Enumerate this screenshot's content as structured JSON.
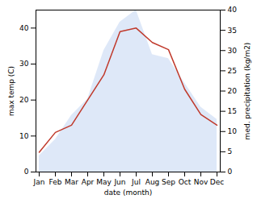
{
  "chart_data": {
    "type": "line",
    "categories": [
      "Jan",
      "Feb",
      "Mar",
      "Apr",
      "May",
      "Jun",
      "Jul",
      "Aug",
      "Sep",
      "Oct",
      "Nov",
      "Dec"
    ],
    "series": [
      {
        "type": "area",
        "axis": "y2",
        "color": "#c8d8f4",
        "values": [
          4,
          8,
          14,
          18,
          30,
          37,
          40,
          29,
          28,
          22,
          16,
          13
        ]
      },
      {
        "type": "line",
        "color": "#c0392b",
        "values": [
          5.5,
          11,
          13,
          20,
          27,
          39,
          40,
          36,
          34,
          23,
          16,
          13
        ]
      }
    ],
    "xlabel": "date (month)",
    "ylabel": "max temp (C)",
    "y2label": "med. precipitation (kg/m2)",
    "ylim": [
      0,
      45
    ],
    "yticks": [
      0,
      10,
      20,
      30,
      40
    ],
    "y2lim": [
      0,
      40
    ],
    "y2ticks": [
      0,
      5,
      10,
      15,
      20,
      25,
      30,
      35,
      40
    ],
    "grid": false
  }
}
